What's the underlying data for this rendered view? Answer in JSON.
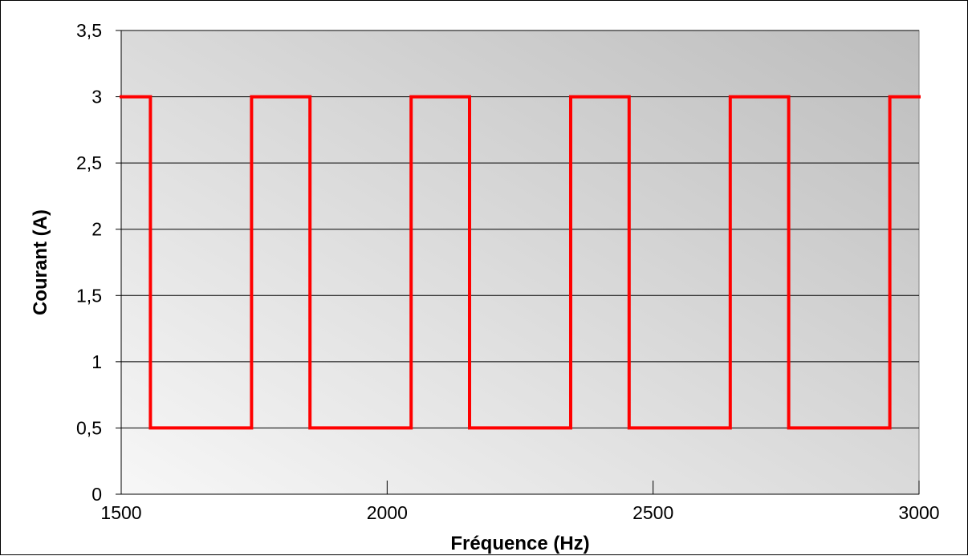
{
  "chart_data": {
    "type": "line",
    "title": "",
    "xlabel": "Fréquence (Hz)",
    "ylabel": "Courant (A)",
    "xlim": [
      1500,
      3000
    ],
    "ylim": [
      0,
      3.5
    ],
    "x_ticks": [
      {
        "value": 1500,
        "label": "1500"
      },
      {
        "value": 2000,
        "label": "2000"
      },
      {
        "value": 2500,
        "label": "2500"
      },
      {
        "value": 3000,
        "label": "3000"
      }
    ],
    "y_ticks": [
      {
        "value": 0,
        "label": "0"
      },
      {
        "value": 0.5,
        "label": "0,5"
      },
      {
        "value": 1,
        "label": "1"
      },
      {
        "value": 1.5,
        "label": "1,5"
      },
      {
        "value": 2,
        "label": "2"
      },
      {
        "value": 2.5,
        "label": "2,5"
      },
      {
        "value": 3,
        "label": "3"
      },
      {
        "value": 3.5,
        "label": "3,5"
      }
    ],
    "grid": "horizontal",
    "legend": "none",
    "series": [
      {
        "color": "#ff0000",
        "step": true,
        "points": [
          [
            1500,
            3
          ],
          [
            1555,
            3
          ],
          [
            1555,
            0.5
          ],
          [
            1745,
            0.5
          ],
          [
            1745,
            3
          ],
          [
            1855,
            3
          ],
          [
            1855,
            0.5
          ],
          [
            2045,
            0.5
          ],
          [
            2045,
            3
          ],
          [
            2155,
            3
          ],
          [
            2155,
            0.5
          ],
          [
            2345,
            0.5
          ],
          [
            2345,
            3
          ],
          [
            2455,
            3
          ],
          [
            2455,
            0.5
          ],
          [
            2645,
            0.5
          ],
          [
            2645,
            3
          ],
          [
            2755,
            3
          ],
          [
            2755,
            0.5
          ],
          [
            2945,
            0.5
          ],
          [
            2945,
            3
          ],
          [
            3000,
            3
          ]
        ]
      }
    ]
  }
}
